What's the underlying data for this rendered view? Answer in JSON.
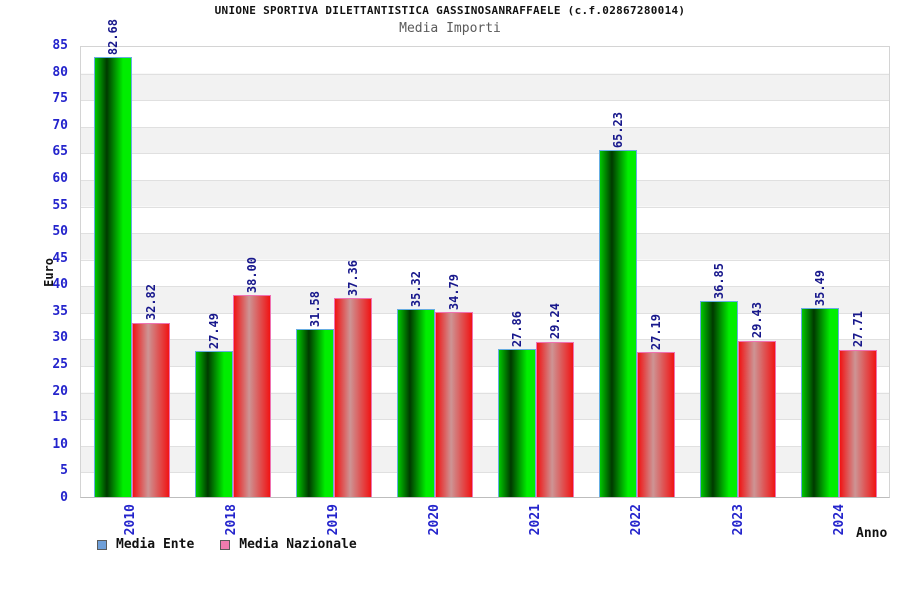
{
  "header": {
    "title": "UNIONE SPORTIVA DILETTANTISTICA GASSINOSANRAFFAELE (c.f.02867280014)",
    "subtitle": "Media Importi"
  },
  "chart_data": {
    "type": "bar",
    "title": "Media Importi",
    "categories": [
      "2010",
      "2018",
      "2019",
      "2020",
      "2021",
      "2022",
      "2023",
      "2024"
    ],
    "series": [
      {
        "name": "Media Ente",
        "values": [
          82.68,
          27.49,
          31.58,
          35.32,
          27.86,
          65.23,
          36.85,
          35.49
        ],
        "bar_gradient": [
          {
            "color": "#00c800",
            "pos": 0
          },
          {
            "color": "#003a00",
            "pos": 33
          },
          {
            "color": "#00ee00",
            "pos": 78
          },
          {
            "color": "#00ee00",
            "pos": 100
          }
        ],
        "bar_border": "#67ade2",
        "legend_swatch": "#6f9fd8"
      },
      {
        "name": "Media Nazionale",
        "values": [
          32.82,
          38.0,
          37.36,
          34.79,
          29.24,
          27.19,
          29.43,
          27.71
        ],
        "bar_gradient": [
          {
            "color": "#f01414",
            "pos": 0
          },
          {
            "color": "#cd9494",
            "pos": 42
          },
          {
            "color": "#f01414",
            "pos": 100
          }
        ],
        "bar_border": "#ef72b2",
        "legend_swatch": "#ef7bae"
      }
    ],
    "xlabel": "Anno",
    "ylabel": "Euro",
    "ylim": [
      0,
      85
    ],
    "ytick_step": 5,
    "value_label_decimals": 2,
    "grid": "horizontal-bands",
    "legend_position": "bottom-left",
    "colors": {
      "tick_label": "#2424cc",
      "value_label": "#18188c",
      "band_white": "#ffffff",
      "band_gray": "#f2f2f2",
      "gridline": "#e0e0e0"
    }
  }
}
